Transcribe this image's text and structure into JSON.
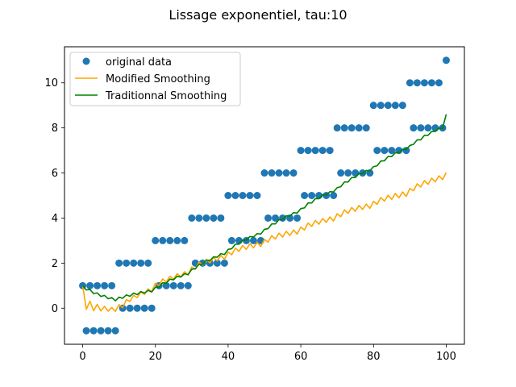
{
  "chart_data": {
    "type": "line",
    "title": "Lissage exponentiel, tau:10",
    "xlabel": "",
    "ylabel": "",
    "xlim": [
      -5,
      105
    ],
    "ylim": [
      -1.6,
      11.6
    ],
    "xticks": [
      0,
      20,
      40,
      60,
      80,
      100
    ],
    "yticks": [
      0,
      2,
      4,
      6,
      8,
      10
    ],
    "grid": false,
    "legend_position": "upper-left",
    "series": [
      {
        "name": "original data",
        "kind": "scatter",
        "color": "#1f77b4",
        "x": [
          0,
          1,
          2,
          3,
          4,
          5,
          6,
          7,
          8,
          9,
          10,
          11,
          12,
          13,
          14,
          15,
          16,
          17,
          18,
          19,
          20,
          21,
          22,
          23,
          24,
          25,
          26,
          27,
          28,
          29,
          30,
          31,
          32,
          33,
          34,
          35,
          36,
          37,
          38,
          39,
          40,
          41,
          42,
          43,
          44,
          45,
          46,
          47,
          48,
          49,
          50,
          51,
          52,
          53,
          54,
          55,
          56,
          57,
          58,
          59,
          60,
          61,
          62,
          63,
          64,
          65,
          66,
          67,
          68,
          69,
          70,
          71,
          72,
          73,
          74,
          75,
          76,
          77,
          78,
          79,
          80,
          81,
          82,
          83,
          84,
          85,
          86,
          87,
          88,
          89,
          90,
          91,
          92,
          93,
          94,
          95,
          96,
          97,
          98,
          99,
          100
        ],
        "y": [
          1,
          -1,
          1,
          -1,
          1,
          -1,
          1,
          -1,
          1,
          -1,
          2,
          0,
          2,
          0,
          2,
          0,
          2,
          0,
          2,
          0,
          3,
          1,
          3,
          1,
          3,
          1,
          3,
          1,
          3,
          1,
          4,
          2,
          4,
          2,
          4,
          2,
          4,
          2,
          4,
          2,
          5,
          3,
          5,
          3,
          5,
          3,
          5,
          3,
          5,
          3,
          6,
          4,
          6,
          4,
          6,
          4,
          6,
          4,
          6,
          4,
          7,
          5,
          7,
          5,
          7,
          5,
          7,
          5,
          7,
          5,
          8,
          6,
          8,
          6,
          8,
          6,
          8,
          6,
          8,
          6,
          9,
          7,
          9,
          7,
          9,
          7,
          9,
          7,
          9,
          7,
          10,
          8,
          10,
          8,
          10,
          8,
          10,
          8,
          10,
          8,
          11
        ]
      },
      {
        "name": "Modified Smoothing",
        "kind": "line",
        "color": "#ffa500",
        "x": [
          0,
          1,
          2,
          3,
          4,
          5,
          6,
          7,
          8,
          9,
          10,
          11,
          12,
          13,
          14,
          15,
          16,
          17,
          18,
          19,
          20,
          21,
          22,
          23,
          24,
          25,
          26,
          27,
          28,
          29,
          30,
          31,
          32,
          33,
          34,
          35,
          36,
          37,
          38,
          39,
          40,
          41,
          42,
          43,
          44,
          45,
          46,
          47,
          48,
          49,
          50,
          51,
          52,
          53,
          54,
          55,
          56,
          57,
          58,
          59,
          60,
          61,
          62,
          63,
          64,
          65,
          66,
          67,
          68,
          69,
          70,
          71,
          72,
          73,
          74,
          75,
          76,
          77,
          78,
          79,
          80,
          81,
          82,
          83,
          84,
          85,
          86,
          87,
          88,
          89,
          90,
          91,
          92,
          93,
          94,
          95,
          96,
          97,
          98,
          99,
          100
        ],
        "y": [
          1.0,
          -0.05,
          0.31,
          -0.11,
          0.17,
          -0.12,
          0.08,
          -0.13,
          0.03,
          -0.14,
          0.16,
          0.02,
          0.38,
          0.3,
          0.57,
          0.47,
          0.73,
          0.61,
          0.86,
          0.73,
          1.11,
          1.0,
          1.3,
          1.16,
          1.42,
          1.29,
          1.53,
          1.39,
          1.62,
          1.47,
          1.83,
          1.73,
          2.05,
          1.91,
          2.17,
          2.01,
          2.26,
          2.1,
          2.34,
          2.17,
          2.49,
          2.37,
          2.67,
          2.52,
          2.78,
          2.61,
          2.86,
          2.68,
          2.92,
          2.74,
          3.05,
          2.93,
          3.22,
          3.07,
          3.33,
          3.16,
          3.41,
          3.23,
          3.47,
          3.29,
          3.6,
          3.47,
          3.78,
          3.63,
          3.89,
          3.73,
          3.98,
          3.81,
          4.05,
          3.87,
          4.19,
          4.06,
          4.36,
          4.21,
          4.47,
          4.3,
          4.56,
          4.38,
          4.62,
          4.43,
          4.74,
          4.61,
          4.91,
          4.75,
          5.01,
          4.83,
          5.09,
          4.9,
          5.16,
          4.96,
          5.31,
          5.21,
          5.52,
          5.38,
          5.66,
          5.5,
          5.77,
          5.61,
          5.87,
          5.71,
          6.02
        ]
      },
      {
        "name": "Traditionnal Smoothing",
        "kind": "line",
        "color": "#008000",
        "x": [
          0,
          1,
          2,
          3,
          4,
          5,
          6,
          7,
          8,
          9,
          10,
          11,
          12,
          13,
          14,
          15,
          16,
          17,
          18,
          19,
          20,
          21,
          22,
          23,
          24,
          25,
          26,
          27,
          28,
          29,
          30,
          31,
          32,
          33,
          34,
          35,
          36,
          37,
          38,
          39,
          40,
          41,
          42,
          43,
          44,
          45,
          46,
          47,
          48,
          49,
          50,
          51,
          52,
          53,
          54,
          55,
          56,
          57,
          58,
          59,
          60,
          61,
          62,
          63,
          64,
          65,
          66,
          67,
          68,
          69,
          70,
          71,
          72,
          73,
          74,
          75,
          76,
          77,
          78,
          79,
          80,
          81,
          82,
          83,
          84,
          85,
          86,
          87,
          88,
          89,
          90,
          91,
          92,
          93,
          94,
          95,
          96,
          97,
          98,
          99,
          100
        ],
        "y": [
          1.0,
          0.81,
          0.83,
          0.65,
          0.68,
          0.52,
          0.57,
          0.42,
          0.47,
          0.33,
          0.49,
          0.44,
          0.59,
          0.53,
          0.67,
          0.6,
          0.74,
          0.67,
          0.79,
          0.72,
          0.93,
          0.94,
          1.13,
          1.11,
          1.29,
          1.26,
          1.42,
          1.38,
          1.53,
          1.49,
          1.73,
          1.75,
          1.95,
          1.94,
          2.13,
          2.11,
          2.28,
          2.26,
          2.42,
          2.38,
          2.61,
          2.64,
          2.84,
          2.84,
          3.02,
          3.02,
          3.18,
          3.16,
          3.31,
          3.29,
          3.5,
          3.53,
          3.74,
          3.74,
          3.93,
          3.93,
          4.1,
          4.09,
          4.24,
          4.22,
          4.42,
          4.45,
          4.67,
          4.67,
          4.86,
          4.86,
          5.03,
          5.02,
          5.17,
          5.16,
          5.35,
          5.39,
          5.6,
          5.6,
          5.8,
          5.8,
          5.97,
          5.96,
          6.11,
          6.1,
          6.28,
          6.32,
          6.53,
          6.54,
          6.73,
          6.73,
          6.9,
          6.89,
          7.05,
          7.04,
          7.22,
          7.27,
          7.47,
          7.47,
          7.67,
          7.67,
          7.84,
          7.84,
          7.99,
          7.98,
          8.6
        ]
      }
    ]
  }
}
